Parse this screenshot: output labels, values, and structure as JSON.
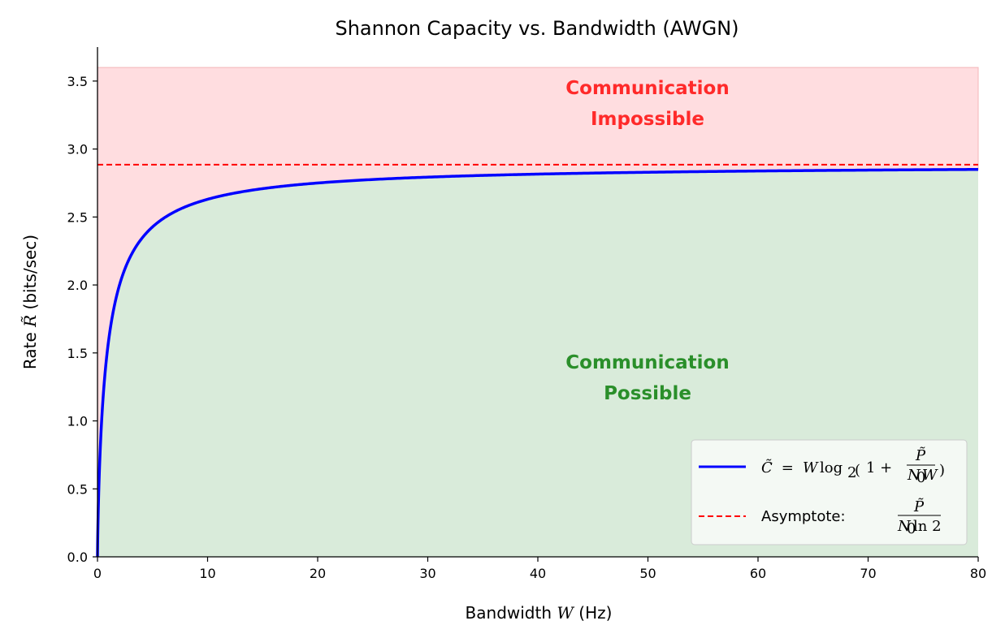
{
  "chart_data": {
    "type": "line",
    "title": "Shannon Capacity vs. Bandwidth (AWGN)",
    "xlabel": {
      "prefix": "Bandwidth ",
      "var": "W",
      "suffix": " (Hz)"
    },
    "ylabel": {
      "prefix": "Rate ",
      "var": "R̃",
      "suffix": " (bits/sec)"
    },
    "xlim": [
      0,
      80
    ],
    "ylim": [
      0,
      3.75
    ],
    "xticks": [
      0,
      10,
      20,
      30,
      40,
      50,
      60,
      70,
      80
    ],
    "xtick_labels": [
      "0",
      "10",
      "20",
      "30",
      "40",
      "50",
      "60",
      "70",
      "80"
    ],
    "yticks": [
      0.0,
      0.5,
      1.0,
      1.5,
      2.0,
      2.5,
      3.0,
      3.5
    ],
    "ytick_labels": [
      "0.0",
      "0.5",
      "1.0",
      "1.5",
      "2.0",
      "2.5",
      "3.0",
      "3.5"
    ],
    "grid": false,
    "legend_position": "lower-right",
    "series": [
      {
        "name": "C̃ = W log₂(1 + P̃/(N₀W))",
        "kind": "capacity-curve",
        "color": "#0000ff",
        "snr_power_ratio": 2.0,
        "x_range": [
          0,
          80
        ]
      },
      {
        "name": "Asymptote: P̃/(N₀ ln 2)",
        "kind": "asymptote",
        "color": "#ff0000",
        "style": "dashed",
        "y": 2.885
      }
    ],
    "regions": [
      {
        "label_line1": "Communication",
        "label_line2": "Impossible",
        "color": "#ff2a2a",
        "fill": "#ffdde0",
        "y_top": 3.6
      },
      {
        "label_line1": "Communication",
        "label_line2": "Possible",
        "color": "#2a8f2a",
        "fill": "#d9ebda"
      }
    ],
    "annotations_positions_in_data": [
      {
        "region": "impossible",
        "x": 50,
        "y": 3.35
      },
      {
        "region": "possible",
        "x": 50,
        "y": 1.35
      }
    ]
  },
  "legend": {
    "capacity": {
      "lhs": "C̃",
      "eq": " = ",
      "W": "W",
      "log": "log",
      "base": "2",
      "one": "1 + ",
      "num": "P̃",
      "den_N": "N",
      "den_0": "0",
      "den_W": "W"
    },
    "asymptote": {
      "prefix": "Asymptote: ",
      "num": "P̃",
      "den_N": "N",
      "den_0": "0",
      "den_ln": "ln 2"
    }
  }
}
